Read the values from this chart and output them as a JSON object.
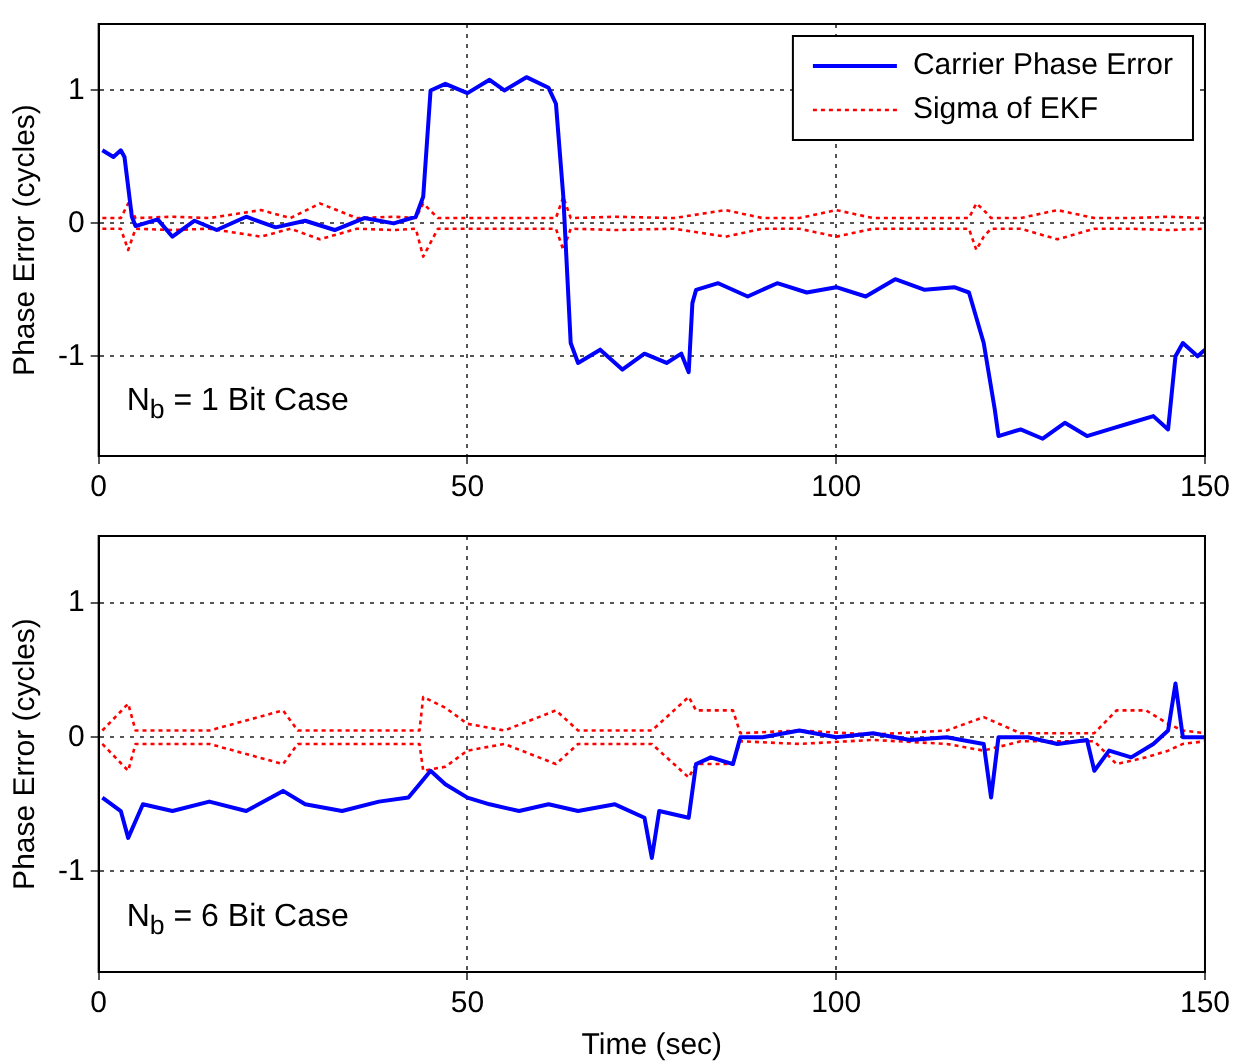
{
  "chart_data": [
    {
      "type": "line",
      "ylabel": "Phase Error (cycles)",
      "annotations": [
        "N$_{b}$ = 1 Bit Case"
      ],
      "xlim": [
        0,
        150
      ],
      "xticks": [
        0,
        50,
        100,
        150
      ],
      "ylim": [
        -1.75,
        1.5
      ],
      "yticks": [
        -1,
        0,
        1
      ],
      "grid": true,
      "legend": "top right",
      "series": [
        {
          "name": "Carrier Phase Error",
          "color": "#0000ff",
          "line_style": "solid",
          "x": [
            0.5,
            2,
            3,
            3.5,
            4.5,
            5,
            8,
            10,
            13,
            16,
            20,
            24,
            28,
            32,
            36,
            40,
            43,
            44,
            45,
            47,
            50,
            53,
            55,
            58,
            61,
            62,
            63,
            64,
            65,
            68,
            71,
            74,
            77,
            79,
            80,
            80.5,
            81,
            84,
            88,
            92,
            96,
            100,
            104,
            108,
            112,
            116,
            118,
            120,
            121.5,
            122,
            125,
            128,
            131,
            134,
            137,
            140,
            143,
            145,
            146,
            147,
            149,
            150
          ],
          "values": [
            0.55,
            0.5,
            0.55,
            0.5,
            0.05,
            -0.02,
            0.03,
            -0.1,
            0.02,
            -0.05,
            0.05,
            -0.03,
            0.02,
            -0.05,
            0.04,
            0.0,
            0.05,
            0.2,
            1.0,
            1.05,
            0.98,
            1.08,
            1.0,
            1.1,
            1.02,
            0.9,
            0.2,
            -0.9,
            -1.05,
            -0.95,
            -1.1,
            -0.98,
            -1.05,
            -0.98,
            -1.12,
            -0.6,
            -0.5,
            -0.45,
            -0.55,
            -0.45,
            -0.52,
            -0.48,
            -0.55,
            -0.42,
            -0.5,
            -0.48,
            -0.52,
            -0.9,
            -1.4,
            -1.6,
            -1.55,
            -1.62,
            -1.5,
            -1.6,
            -1.55,
            -1.5,
            -1.45,
            -1.55,
            -1.0,
            -0.9,
            -1.0,
            -0.95
          ]
        },
        {
          "name": "Sigma of EKF",
          "color": "#ff0000",
          "line_style": "dotted",
          "x": [
            0.5,
            3,
            4,
            5,
            10,
            15,
            22,
            26,
            30,
            35,
            40,
            43,
            44,
            46,
            55,
            62,
            63,
            64,
            70,
            78,
            85,
            90,
            95,
            100,
            105,
            110,
            118,
            119,
            120,
            121,
            125,
            130,
            135,
            140,
            145,
            150
          ],
          "values": [
            0.04,
            0.04,
            0.15,
            0.04,
            0.05,
            0.04,
            0.1,
            0.04,
            0.15,
            0.04,
            0.05,
            0.04,
            0.15,
            0.04,
            0.04,
            0.04,
            0.2,
            0.04,
            0.05,
            0.04,
            0.1,
            0.04,
            0.04,
            0.1,
            0.04,
            0.04,
            0.04,
            0.15,
            0.1,
            0.04,
            0.04,
            0.1,
            0.04,
            0.04,
            0.05,
            0.04
          ]
        },
        {
          "color": "#ff0000",
          "line_style": "dotted",
          "x": [
            0.5,
            3,
            4,
            5,
            10,
            15,
            22,
            26,
            30,
            35,
            40,
            43,
            44,
            46,
            55,
            62,
            63,
            64,
            70,
            78,
            85,
            90,
            95,
            100,
            105,
            110,
            118,
            119,
            120,
            121,
            125,
            130,
            135,
            140,
            145,
            150
          ],
          "values": [
            -0.04,
            -0.04,
            -0.2,
            -0.04,
            -0.05,
            -0.04,
            -0.1,
            -0.04,
            -0.12,
            -0.04,
            -0.05,
            -0.04,
            -0.25,
            -0.04,
            -0.04,
            -0.04,
            -0.2,
            -0.04,
            -0.05,
            -0.04,
            -0.1,
            -0.04,
            -0.04,
            -0.1,
            -0.04,
            -0.04,
            -0.04,
            -0.2,
            -0.1,
            -0.04,
            -0.04,
            -0.12,
            -0.04,
            -0.04,
            -0.05,
            -0.04
          ]
        }
      ]
    },
    {
      "type": "line",
      "xlabel": "Time (sec)",
      "ylabel": "Phase Error (cycles)",
      "annotations": [
        "N$_{b}$ = 6 Bit Case"
      ],
      "xlim": [
        0,
        150
      ],
      "xticks": [
        0,
        50,
        100,
        150
      ],
      "ylim": [
        -1.75,
        1.5
      ],
      "yticks": [
        -1,
        0,
        1
      ],
      "grid": true,
      "series": [
        {
          "color": "#0000ff",
          "line_style": "solid",
          "x": [
            0.5,
            3,
            4,
            6,
            10,
            15,
            20,
            25,
            28,
            33,
            38,
            42,
            43.5,
            45,
            47,
            50,
            53,
            57,
            61,
            65,
            70,
            74,
            75,
            76,
            80,
            81,
            83,
            86,
            87,
            90,
            95,
            100,
            105,
            110,
            115,
            120,
            121,
            122,
            126,
            130,
            134,
            135,
            137,
            140,
            143,
            145,
            146,
            147,
            150
          ],
          "values": [
            -0.45,
            -0.55,
            -0.75,
            -0.5,
            -0.55,
            -0.48,
            -0.55,
            -0.4,
            -0.5,
            -0.55,
            -0.48,
            -0.45,
            -0.35,
            -0.25,
            -0.35,
            -0.45,
            -0.5,
            -0.55,
            -0.5,
            -0.55,
            -0.5,
            -0.6,
            -0.9,
            -0.55,
            -0.6,
            -0.2,
            -0.15,
            -0.2,
            0.0,
            0.0,
            0.05,
            0.0,
            0.03,
            -0.02,
            0.0,
            -0.05,
            -0.45,
            0.0,
            0.0,
            -0.05,
            -0.02,
            -0.25,
            -0.1,
            -0.15,
            -0.05,
            0.05,
            0.4,
            0.0,
            0.0
          ]
        },
        {
          "color": "#ff0000",
          "line_style": "dotted",
          "x": [
            0.5,
            4,
            5,
            15,
            25,
            27,
            30,
            40,
            43.5,
            44,
            47,
            50,
            55,
            62,
            65,
            75,
            80,
            81,
            86,
            87,
            95,
            105,
            115,
            120,
            125,
            135,
            138,
            142,
            145,
            147,
            150
          ],
          "values": [
            0.05,
            0.25,
            0.05,
            0.05,
            0.2,
            0.05,
            0.05,
            0.05,
            0.05,
            0.3,
            0.22,
            0.1,
            0.05,
            0.2,
            0.05,
            0.05,
            0.3,
            0.2,
            0.2,
            0.03,
            0.05,
            0.02,
            0.05,
            0.15,
            0.03,
            0.03,
            0.2,
            0.2,
            0.1,
            0.05,
            0.03
          ]
        },
        {
          "color": "#ff0000",
          "line_style": "dotted",
          "x": [
            0.5,
            4,
            5,
            15,
            25,
            27,
            30,
            40,
            43.5,
            44,
            47,
            50,
            55,
            62,
            65,
            75,
            80,
            81,
            86,
            87,
            95,
            105,
            115,
            120,
            125,
            135,
            138,
            142,
            145,
            147,
            150
          ],
          "values": [
            -0.05,
            -0.25,
            -0.05,
            -0.05,
            -0.2,
            -0.05,
            -0.05,
            -0.05,
            -0.05,
            -0.25,
            -0.22,
            -0.1,
            -0.05,
            -0.2,
            -0.05,
            -0.05,
            -0.3,
            -0.2,
            -0.2,
            -0.03,
            -0.05,
            -0.02,
            -0.05,
            -0.1,
            -0.03,
            -0.03,
            -0.2,
            -0.15,
            -0.1,
            -0.05,
            -0.03
          ]
        }
      ]
    }
  ]
}
